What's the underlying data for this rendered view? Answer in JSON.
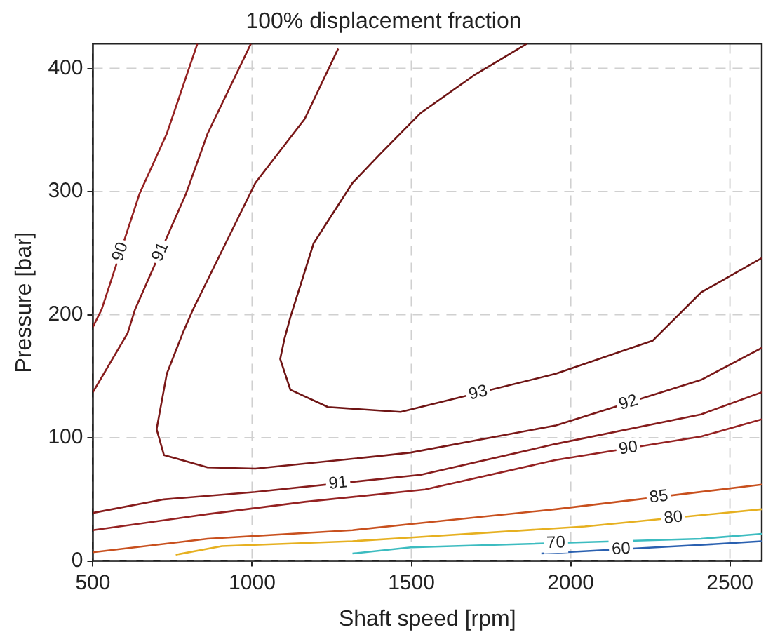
{
  "chart_data": {
    "type": "line",
    "title": "100% displacement fraction",
    "xlabel": "Shaft speed [rpm]",
    "ylabel": "Pressure [bar]",
    "xlim": [
      500,
      2600
    ],
    "ylim": [
      0,
      420
    ],
    "xticks": [
      500,
      1000,
      1500,
      2000,
      2500
    ],
    "yticks": [
      0,
      100,
      200,
      300,
      400
    ],
    "grid": true,
    "legend": false,
    "marker": "none",
    "line_style": "solid",
    "series": [
      {
        "name": "93",
        "color": "#6e1414",
        "x": [
          1862,
          1700,
          1530,
          1400,
          1315,
          1193,
          1120,
          1101,
          1088,
          1120,
          1238,
          1466,
          1953,
          2258,
          2409,
          2600
        ],
        "values": [
          420,
          395,
          364,
          330,
          307,
          258,
          198,
          180,
          164,
          139,
          125,
          121,
          152,
          179,
          218,
          246
        ]
      },
      {
        "name": "92",
        "color": "#7a1818",
        "x": [
          1270,
          1165,
          1010,
          814,
          782,
          732,
          700,
          723,
          860,
          1010,
          1393,
          1498,
          1953,
          2409,
          2600
        ],
        "values": [
          416,
          359,
          307,
          204,
          185,
          152,
          107,
          86,
          76,
          75,
          85,
          88,
          110,
          147,
          173
        ]
      },
      {
        "name": "91",
        "color": "#861c1c",
        "x": [
          996,
          860,
          792,
          632,
          609,
          500
        ],
        "values": [
          420,
          347,
          298,
          204,
          185,
          137
        ]
      },
      {
        "name": "91",
        "color": "#861c1c",
        "x": [
          500,
          723,
          1010,
          1530,
          1953,
          2409,
          2600
        ],
        "values": [
          39,
          50,
          56,
          70,
          95,
          119,
          137
        ]
      },
      {
        "name": "90",
        "color": "#952222",
        "x": [
          828,
          732,
          646,
          527,
          500
        ],
        "values": [
          420,
          347,
          298,
          204,
          190
        ]
      },
      {
        "name": "90",
        "color": "#952222",
        "x": [
          500,
          860,
          1165,
          1543,
          1953,
          2409,
          2600
        ],
        "values": [
          25,
          38,
          48,
          58,
          82,
          101,
          115
        ]
      },
      {
        "name": "85",
        "color": "#c8501e",
        "x": [
          500,
          860,
          1315,
          1498,
          1953,
          2600
        ],
        "values": [
          7,
          18,
          25,
          30,
          42,
          62
        ]
      },
      {
        "name": "80",
        "color": "#e6b020",
        "x": [
          760,
          905,
          1315,
          1498,
          2044,
          2600
        ],
        "values": [
          5,
          12,
          16,
          19,
          28,
          42
        ]
      },
      {
        "name": "70",
        "color": "#3cbcc0",
        "x": [
          1315,
          1498,
          2409,
          2600
        ],
        "values": [
          6,
          11,
          18,
          22
        ]
      },
      {
        "name": "60",
        "color": "#2a60b0",
        "x": [
          1908,
          2409,
          2600
        ],
        "values": [
          6,
          13,
          16
        ]
      }
    ]
  }
}
